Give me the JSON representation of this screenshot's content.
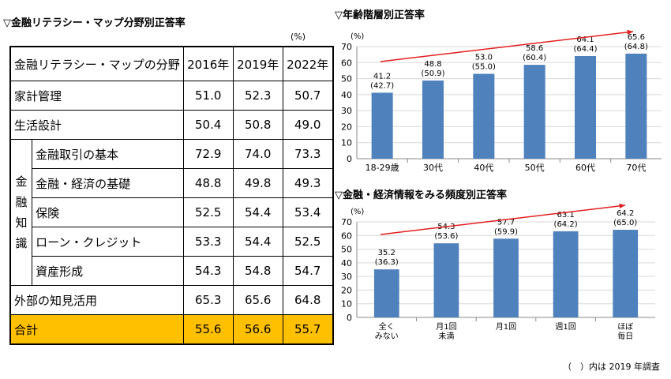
{
  "table": {
    "title": "▽金融リテラシー・マップ分野別正答率",
    "unit": "(%)",
    "header": {
      "field": "金融リテラシー・マップの分野",
      "years": [
        "2016年",
        "2019年",
        "2022年"
      ]
    },
    "rows": [
      {
        "label": "家計管理",
        "values": [
          "51.0",
          "52.3",
          "50.7"
        ]
      },
      {
        "label": "生活設計",
        "values": [
          "50.4",
          "50.8",
          "49.0"
        ]
      }
    ],
    "group_label": "金融知識",
    "group_rows": [
      {
        "label": "金融取引の基本",
        "values": [
          "72.9",
          "74.0",
          "73.3"
        ]
      },
      {
        "label": "金融・経済の基礎",
        "values": [
          "48.8",
          "49.8",
          "49.3"
        ]
      },
      {
        "label": "保険",
        "values": [
          "52.5",
          "54.4",
          "53.4"
        ]
      },
      {
        "label": "ローン・クレジット",
        "values": [
          "53.3",
          "54.4",
          "52.5"
        ]
      },
      {
        "label": "資産形成",
        "values": [
          "54.3",
          "54.8",
          "54.7"
        ]
      }
    ],
    "after_rows": [
      {
        "label": "外部の知見活用",
        "values": [
          "65.3",
          "65.6",
          "64.8"
        ]
      }
    ],
    "total": {
      "label": "合計",
      "values": [
        "55.6",
        "56.6",
        "55.7"
      ]
    }
  },
  "chart_data": [
    {
      "type": "bar",
      "title": "▽年齢階層別正答率",
      "ylabel": "(%)",
      "ylim": [
        0,
        70
      ],
      "yticks": [
        0,
        10,
        20,
        30,
        40,
        50,
        60,
        70
      ],
      "categories": [
        "18-29歳",
        "30代",
        "40代",
        "50代",
        "60代",
        "70代"
      ],
      "values": [
        41.2,
        48.8,
        53.0,
        58.6,
        64.1,
        65.6
      ],
      "labels": [
        "41.2",
        "48.8",
        "53.0",
        "58.6",
        "64.1",
        "65.6"
      ],
      "prev_labels": [
        "(42.7)",
        "(50.9)",
        "(55.0)",
        "(60.4)",
        "(64.4)",
        "(64.8)"
      ],
      "bar_color": "#4f81bd",
      "arrow_color": "#e41e1e"
    },
    {
      "type": "bar",
      "title": "▽金融・経済情報をみる頻度別正答率",
      "ylabel": "(%)",
      "ylim": [
        0,
        70
      ],
      "yticks": [
        0,
        10,
        20,
        30,
        40,
        50,
        60,
        70
      ],
      "categories": [
        [
          "全く",
          "みない"
        ],
        [
          "月1回",
          "未満"
        ],
        [
          "月1回"
        ],
        [
          "週1回"
        ],
        [
          "ほぼ",
          "毎日"
        ]
      ],
      "values": [
        35.2,
        54.3,
        57.7,
        63.1,
        64.2
      ],
      "labels": [
        "35.2",
        "54.3",
        "57.7",
        "63.1",
        "64.2"
      ],
      "prev_labels": [
        "(36.3)",
        "(53.6)",
        "(59.9)",
        "(64.2)",
        "(65.0)"
      ],
      "bar_color": "#4f81bd",
      "arrow_color": "#e41e1e"
    }
  ],
  "footnote": "（　）内は 2019 年調査"
}
